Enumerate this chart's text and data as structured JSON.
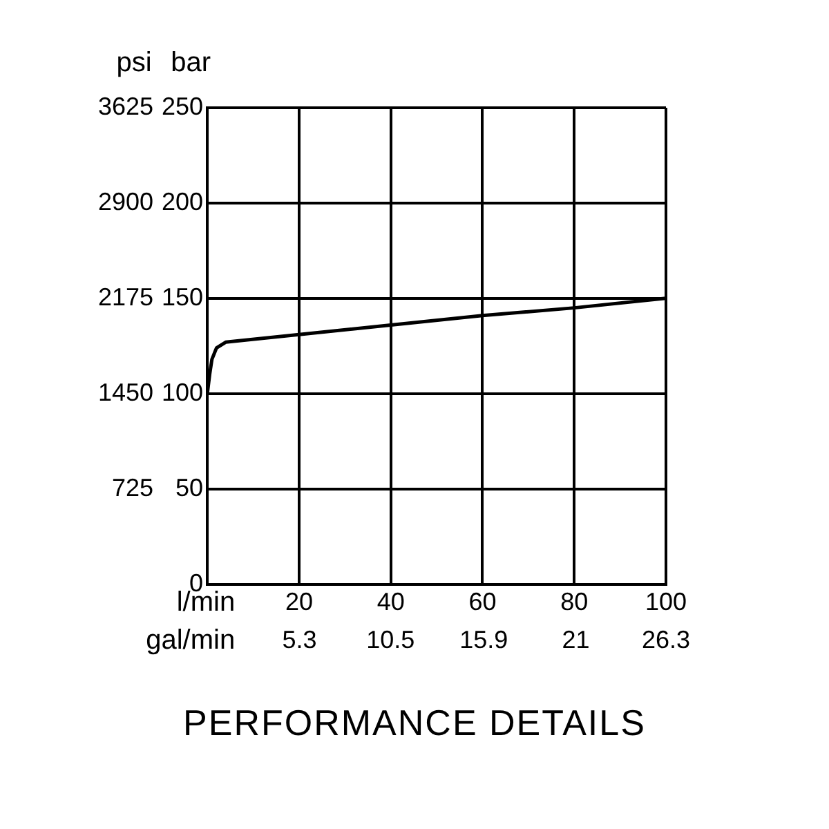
{
  "chart_data": {
    "type": "line",
    "title": "PERFORMANCE DETAILS",
    "xlabel": "l/min",
    "x2label": "gal/min",
    "ylabel": "bar",
    "y2label": "psi",
    "x": [
      0,
      0.5,
      1,
      2,
      4,
      20,
      40,
      60,
      80,
      100
    ],
    "series": [
      {
        "color": "#000000",
        "values": [
          100,
          110,
          118,
          124,
          127,
          131,
          136,
          141,
          145,
          150
        ]
      }
    ],
    "xlim": [
      0,
      100
    ],
    "xticks": [
      {
        "value": 0,
        "label": null
      },
      20,
      40,
      60,
      80,
      100
    ],
    "x2lim": [
      0,
      26.3
    ],
    "x2ticks": [
      {
        "value": 5.28,
        "label": "5.3"
      },
      10.5,
      {
        "value": 15.85,
        "label": "15.9"
      },
      {
        "value": 21.13,
        "label": "21"
      },
      26.3
    ],
    "ylim": [
      0,
      250
    ],
    "yticks": [
      0,
      50,
      100,
      150,
      200,
      250
    ],
    "y2lim": [
      0,
      3625
    ],
    "y2ticks": [
      725,
      1450,
      2175,
      2900,
      3625
    ],
    "grid": true,
    "legend": false,
    "marker": "none",
    "line_style": "solid"
  }
}
